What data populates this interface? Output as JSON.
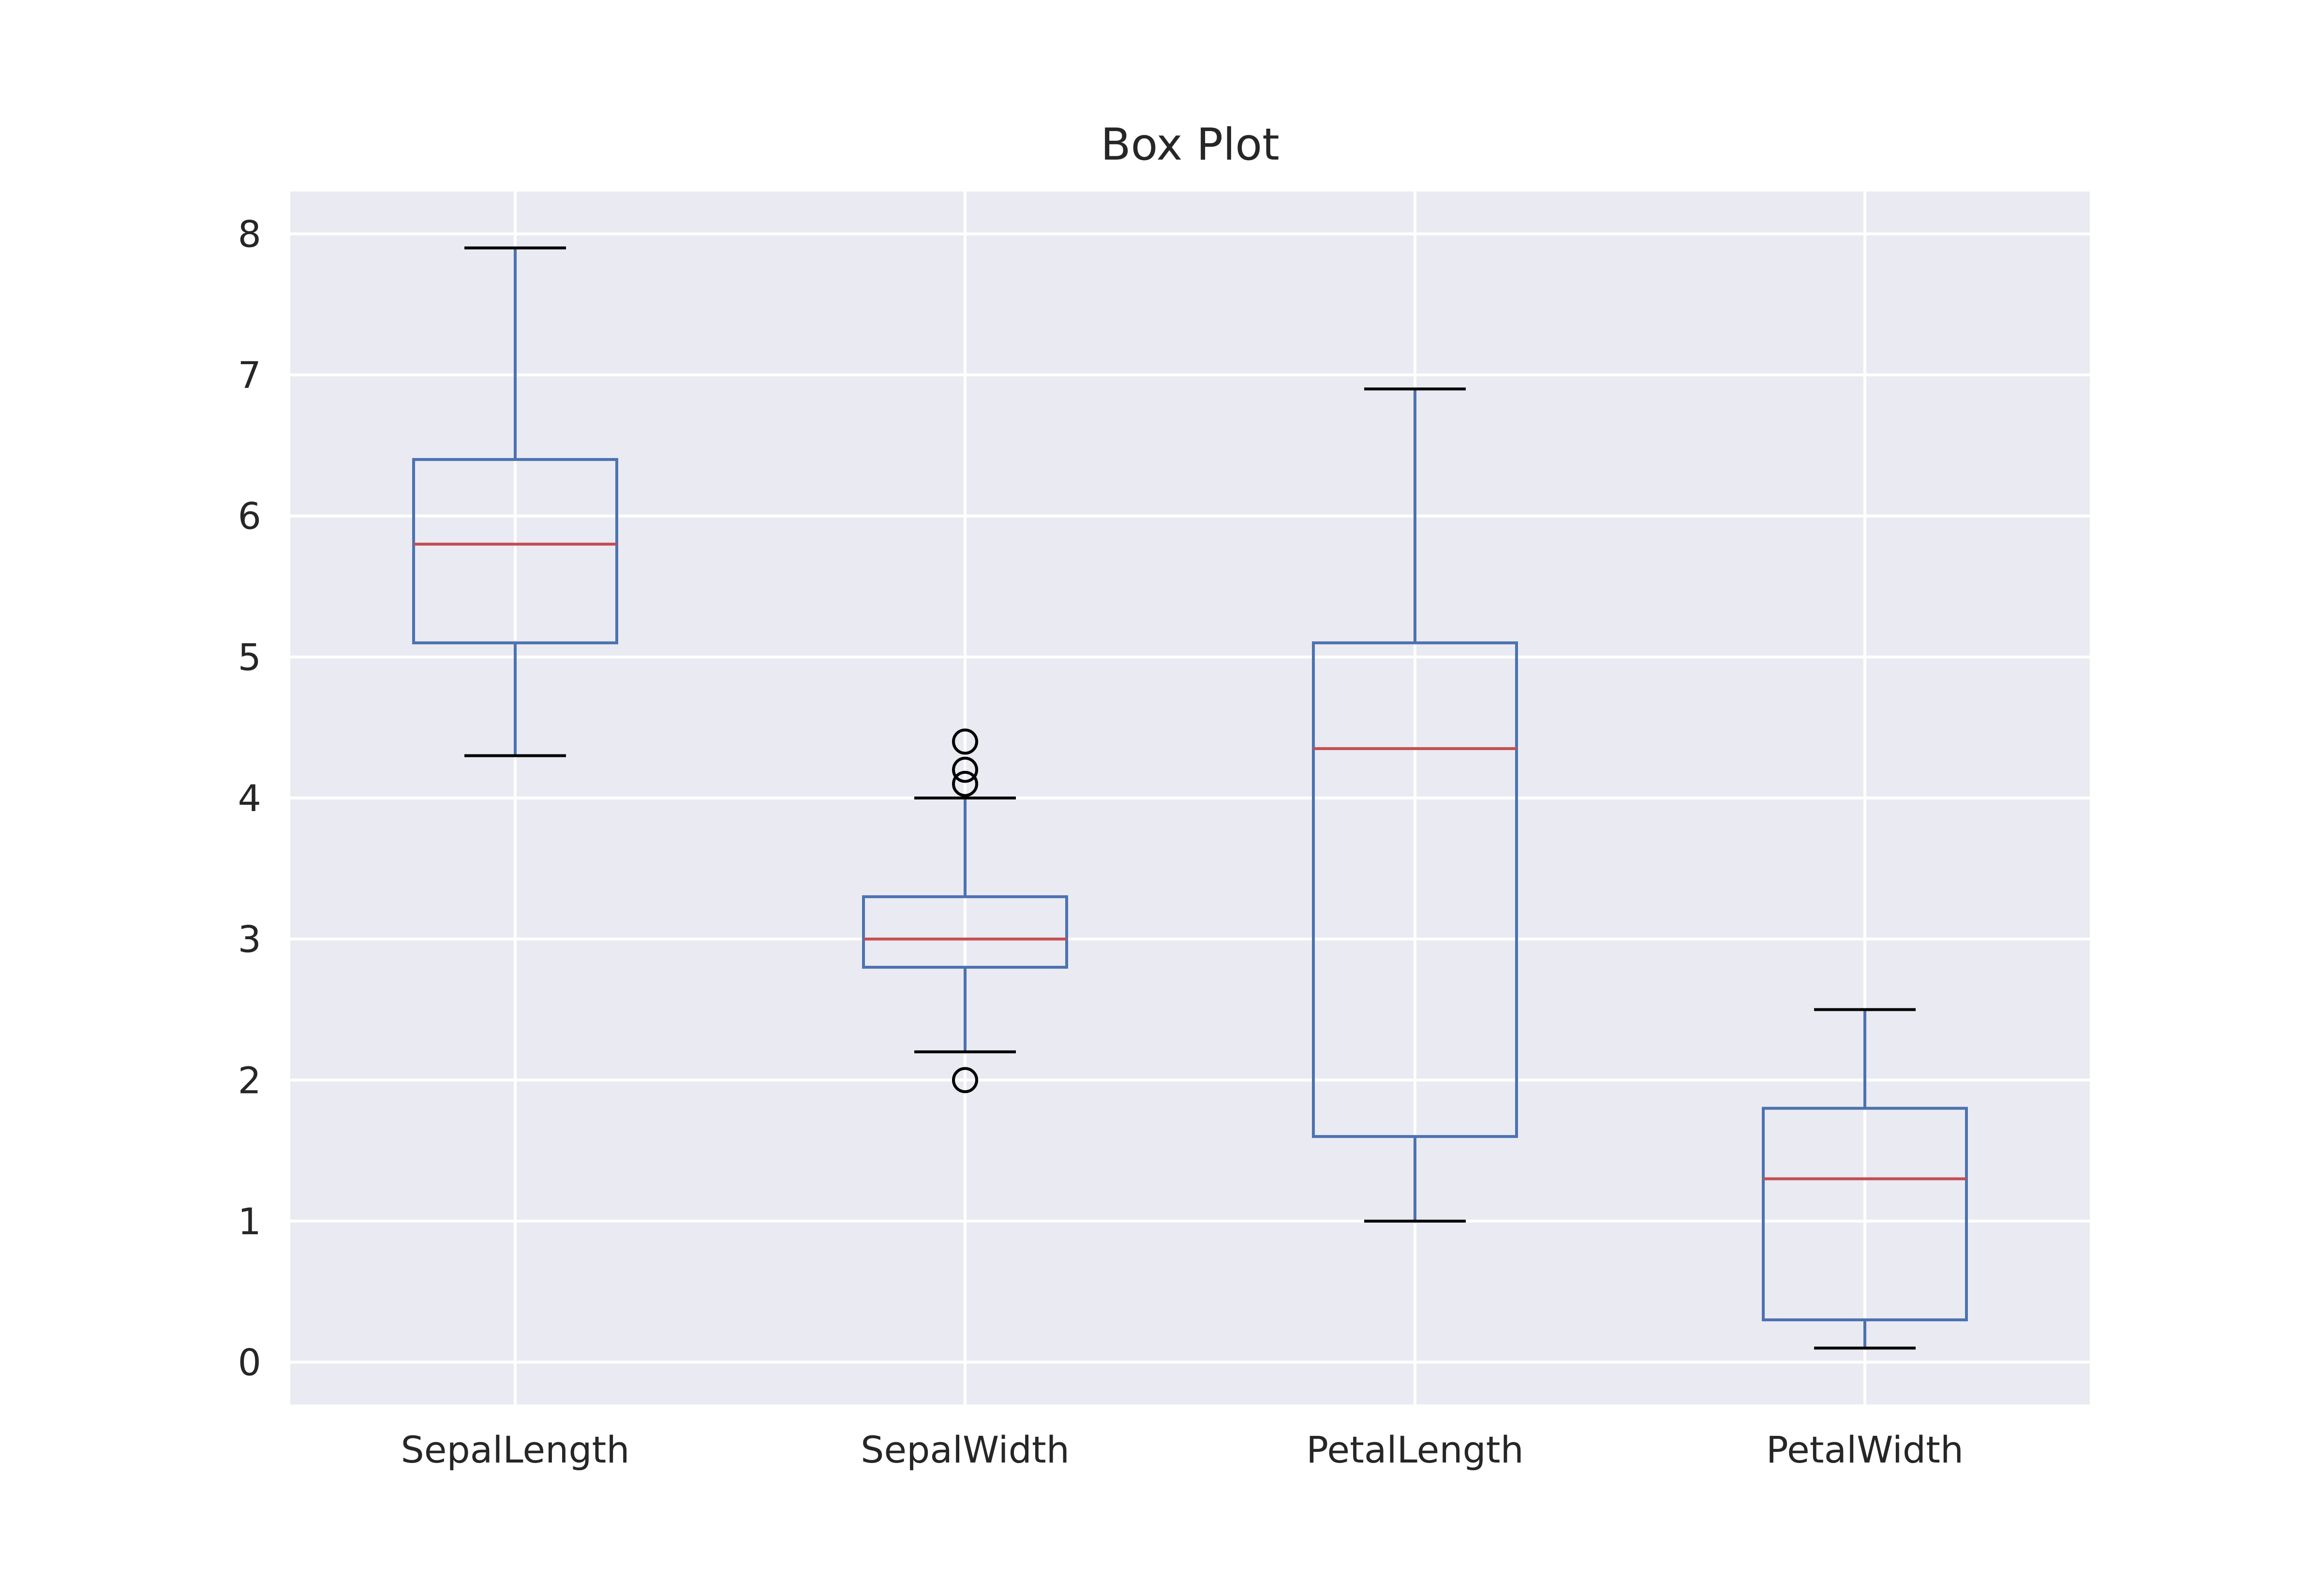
{
  "chart_data": {
    "type": "box",
    "title": "Box Plot",
    "xlabel": "",
    "ylabel": "",
    "ylim": [
      -0.3,
      8.3
    ],
    "yticks": [
      0,
      1,
      2,
      3,
      4,
      5,
      6,
      7,
      8
    ],
    "grid": true,
    "categories": [
      "SepalLength",
      "SepalWidth",
      "PetalLength",
      "PetalWidth"
    ],
    "boxes": [
      {
        "name": "SepalLength",
        "whisker_low": 4.3,
        "q1": 5.1,
        "median": 5.8,
        "q3": 6.4,
        "whisker_high": 7.9,
        "outliers": []
      },
      {
        "name": "SepalWidth",
        "whisker_low": 2.2,
        "q1": 2.8,
        "median": 3.0,
        "q3": 3.3,
        "whisker_high": 4.0,
        "outliers": [
          4.4,
          4.1,
          4.2,
          2.0
        ]
      },
      {
        "name": "PetalLength",
        "whisker_low": 1.0,
        "q1": 1.6,
        "median": 4.35,
        "q3": 5.1,
        "whisker_high": 6.9,
        "outliers": []
      },
      {
        "name": "PetalWidth",
        "whisker_low": 0.1,
        "q1": 0.3,
        "median": 1.3,
        "q3": 1.8,
        "whisker_high": 2.5,
        "outliers": []
      }
    ],
    "colors": {
      "plot_background": "#eaeaf2",
      "grid": "#ffffff",
      "box": "#4c72b0",
      "median": "#c44e52",
      "whisker_cap": "#000000",
      "outlier": "#000000"
    }
  }
}
